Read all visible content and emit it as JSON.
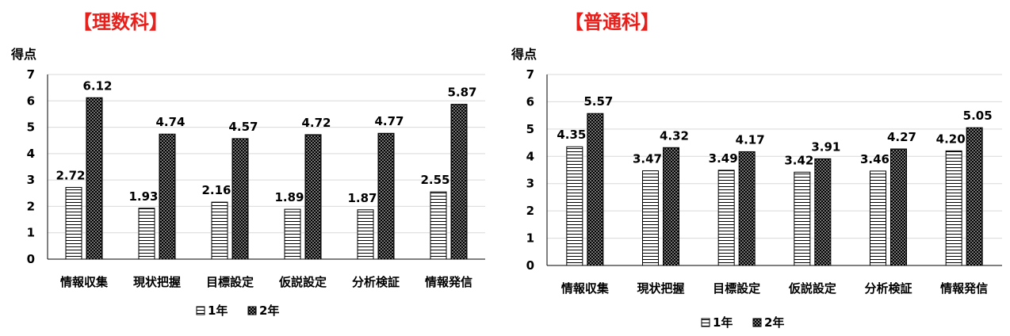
{
  "chart_data": [
    {
      "type": "bar",
      "title": "【理数科】",
      "ylabel": "得点",
      "xlabel": "",
      "ylim": [
        0,
        7
      ],
      "yticks": [
        0,
        1,
        2,
        3,
        4,
        5,
        6,
        7
      ],
      "grid": true,
      "legend_placement": "bottom",
      "categories": [
        "情報収集",
        "現状把握",
        "目標設定",
        "仮説設定",
        "分析検証",
        "情報発信"
      ],
      "series": [
        {
          "name": "1年",
          "values": [
            2.72,
            1.93,
            2.16,
            1.89,
            1.87,
            2.55
          ],
          "labels": [
            "2.72",
            "1.93",
            "2.16",
            "1.89",
            "1.87",
            "2.55"
          ],
          "pattern": "horizontal-stripes"
        },
        {
          "name": "2年",
          "values": [
            6.12,
            4.74,
            4.57,
            4.72,
            4.77,
            5.87
          ],
          "labels": [
            "6.12",
            "4.74",
            "4.57",
            "4.72",
            "4.77",
            "5.87"
          ],
          "pattern": "dots"
        }
      ]
    },
    {
      "type": "bar",
      "title": "【普通科】",
      "ylabel": "得点",
      "xlabel": "",
      "ylim": [
        0,
        7
      ],
      "yticks": [
        0,
        1,
        2,
        3,
        4,
        5,
        6,
        7
      ],
      "grid": true,
      "legend_placement": "bottom",
      "categories": [
        "情報収集",
        "現状把握",
        "目標設定",
        "仮説設定",
        "分析検証",
        "情報発信"
      ],
      "series": [
        {
          "name": "1年",
          "values": [
            4.35,
            3.47,
            3.49,
            3.42,
            3.46,
            4.2
          ],
          "labels": [
            "4.35",
            "3.47",
            "3.49",
            "3.42",
            "3.46",
            "4.20"
          ],
          "pattern": "horizontal-stripes"
        },
        {
          "name": "2年",
          "values": [
            5.57,
            4.32,
            4.17,
            3.91,
            4.27,
            5.05
          ],
          "labels": [
            "5.57",
            "4.32",
            "4.17",
            "3.91",
            "4.27",
            "5.05"
          ],
          "pattern": "dots"
        }
      ]
    }
  ]
}
